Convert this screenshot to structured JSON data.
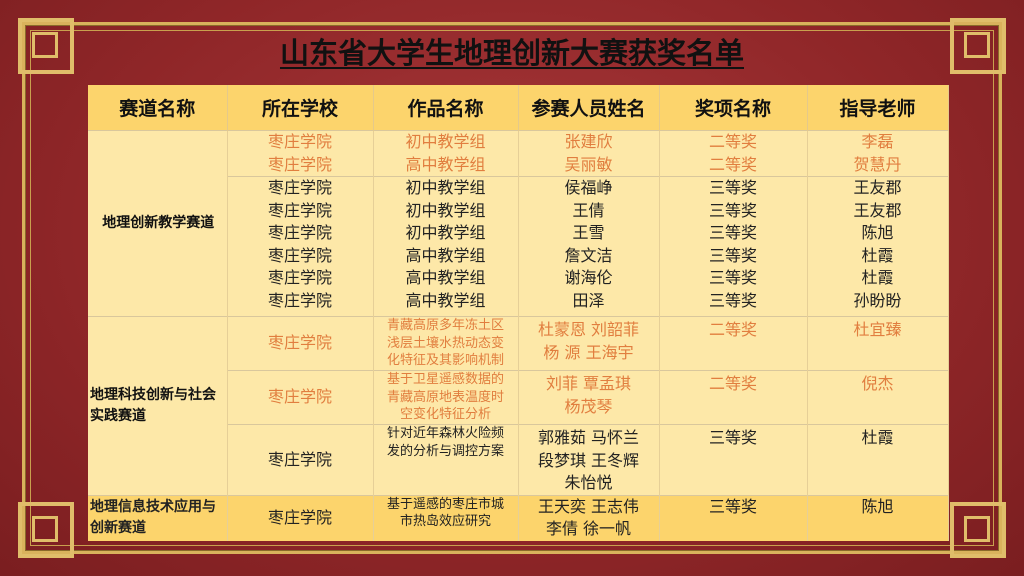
{
  "title": "山东省大学生地理创新大赛获奖名单",
  "colors": {
    "header_bg": "#fcd46c",
    "body_bg": "#fde8a8",
    "highlight_text": "#e17e3f",
    "background": "#8f2628",
    "border_gold": "#d9b25c"
  },
  "headers": [
    "赛道名称",
    "所在学校",
    "作品名称",
    "参赛人员姓名",
    "奖项名称",
    "指导老师"
  ],
  "tracks": [
    {
      "name": "地理创新教学赛道",
      "rows": [
        {
          "highlight": true,
          "school": [
            "枣庄学院",
            "枣庄学院"
          ],
          "work": [
            "初中教学组",
            "高中教学组"
          ],
          "members": [
            "张建欣",
            "吴丽敏"
          ],
          "award": [
            "二等奖",
            "二等奖"
          ],
          "advisor": [
            "李磊",
            "贺慧丹"
          ]
        },
        {
          "highlight": false,
          "school": [
            "枣庄学院",
            "枣庄学院",
            "枣庄学院",
            "枣庄学院",
            "枣庄学院",
            "枣庄学院"
          ],
          "work": [
            "初中教学组",
            "初中教学组",
            "初中教学组",
            "高中教学组",
            "高中教学组",
            "高中教学组"
          ],
          "members": [
            "侯福峥",
            "王倩",
            "王雪",
            "詹文洁",
            "谢海伦",
            "田泽"
          ],
          "award": [
            "三等奖",
            "三等奖",
            "三等奖",
            "三等奖",
            "三等奖",
            "三等奖"
          ],
          "advisor": [
            "王友郡",
            "王友郡",
            "陈旭",
            "杜霞",
            "杜霞",
            "孙盼盼"
          ]
        }
      ]
    },
    {
      "name": "地理科技创新与社会实践赛道",
      "rows": [
        {
          "highlight": true,
          "school": [
            "枣庄学院"
          ],
          "work": [
            "青藏高原多年冻土区",
            "浅层土壤水热动态变",
            "化特征及其影响机制"
          ],
          "members": [
            "杜蒙恩  刘韶菲",
            "杨   源  王海宇"
          ],
          "award": [
            "二等奖"
          ],
          "advisor": [
            "杜宜臻"
          ]
        },
        {
          "highlight": true,
          "school": [
            "枣庄学院"
          ],
          "work": [
            "基于卫星遥感数据的",
            "青藏高原地表温度时",
            "空变化特征分析"
          ],
          "members": [
            "刘菲 覃孟琪",
            "杨茂琴"
          ],
          "award": [
            "二等奖"
          ],
          "advisor": [
            "倪杰"
          ]
        },
        {
          "highlight": false,
          "school": [
            "枣庄学院"
          ],
          "work": [
            "针对近年森林火险频",
            "发的分析与调控方案"
          ],
          "members": [
            "郭雅茹 马怀兰",
            "段梦琪 王冬辉",
            "朱怡悦"
          ],
          "award": [
            "三等奖"
          ],
          "advisor": [
            "杜霞"
          ]
        }
      ]
    },
    {
      "name": "地理信息技术应用与创新赛道",
      "rows": [
        {
          "highlight": false,
          "school": [
            "枣庄学院"
          ],
          "work": [
            "基于遥感的枣庄市城",
            "市热岛效应研究"
          ],
          "members": [
            "王天奕 王志伟",
            "李倩    徐一帆"
          ],
          "award": [
            "三等奖"
          ],
          "advisor": [
            "陈旭"
          ]
        }
      ]
    }
  ]
}
